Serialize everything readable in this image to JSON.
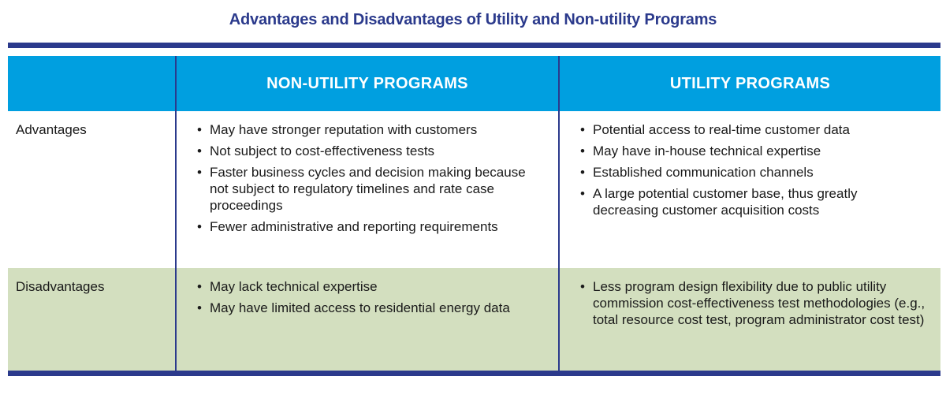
{
  "title": "Advantages and Disadvantages of Utility and Non-utility Programs",
  "columns": [
    "",
    "NON-UTILITY PROGRAMS",
    "UTILITY PROGRAMS"
  ],
  "rows": [
    {
      "label": "Advantages",
      "non_utility": [
        "May have stronger reputation with customers",
        "Not subject to cost-effectiveness tests",
        "Faster business cycles and decision making because not subject to regulatory timelines and rate case proceedings",
        "Fewer administrative and reporting requirements"
      ],
      "utility": [
        "Potential access to real-time customer data",
        "May have in-house technical expertise",
        "Established communication channels",
        "A large potential customer base, thus greatly decreasing customer acquisition costs"
      ]
    },
    {
      "label": "Disadvantages",
      "non_utility": [
        "May lack technical expertise",
        "May have limited access to residential energy data"
      ],
      "utility": [
        "Less program design flexibility due to public utility commission cost-effectiveness test methodologies (e.g., total resource cost test, program administrator cost test)"
      ]
    }
  ],
  "colors": {
    "title": "#2b3a8c",
    "rule": "#2b3a8c",
    "header_bg": "#009fe0",
    "disadvantages_bg": "#d3dfbf"
  },
  "bullet_icon": "•"
}
